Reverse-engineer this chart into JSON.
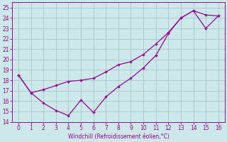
{
  "line1_x": [
    0,
    1,
    2,
    3,
    4,
    5,
    6,
    7,
    8,
    9,
    10,
    11,
    12,
    13,
    14,
    15,
    16
  ],
  "line1_y": [
    18.5,
    16.8,
    15.8,
    15.1,
    14.6,
    16.1,
    14.9,
    16.4,
    17.4,
    18.2,
    19.2,
    20.4,
    22.5,
    24.0,
    24.7,
    24.3,
    24.2
  ],
  "line2_x": [
    0,
    1,
    2,
    3,
    4,
    5,
    6,
    7,
    8,
    9,
    10,
    11,
    12,
    13,
    14,
    15,
    16
  ],
  "line2_y": [
    18.5,
    16.8,
    17.1,
    17.5,
    17.9,
    18.0,
    18.2,
    18.8,
    19.5,
    19.8,
    20.5,
    21.5,
    22.6,
    24.0,
    24.7,
    23.0,
    24.2
  ],
  "color": "#990099",
  "bg_color": "#cce8e8",
  "grid_color": "#aacccc",
  "xlabel": "Windchill (Refroidissement éolien,°C)",
  "ylim": [
    14,
    25.5
  ],
  "xlim": [
    -0.5,
    16.5
  ],
  "yticks": [
    14,
    15,
    16,
    17,
    18,
    19,
    20,
    21,
    22,
    23,
    24,
    25
  ],
  "xticks": [
    0,
    1,
    2,
    3,
    4,
    5,
    6,
    7,
    8,
    9,
    10,
    11,
    12,
    13,
    14,
    15,
    16
  ]
}
